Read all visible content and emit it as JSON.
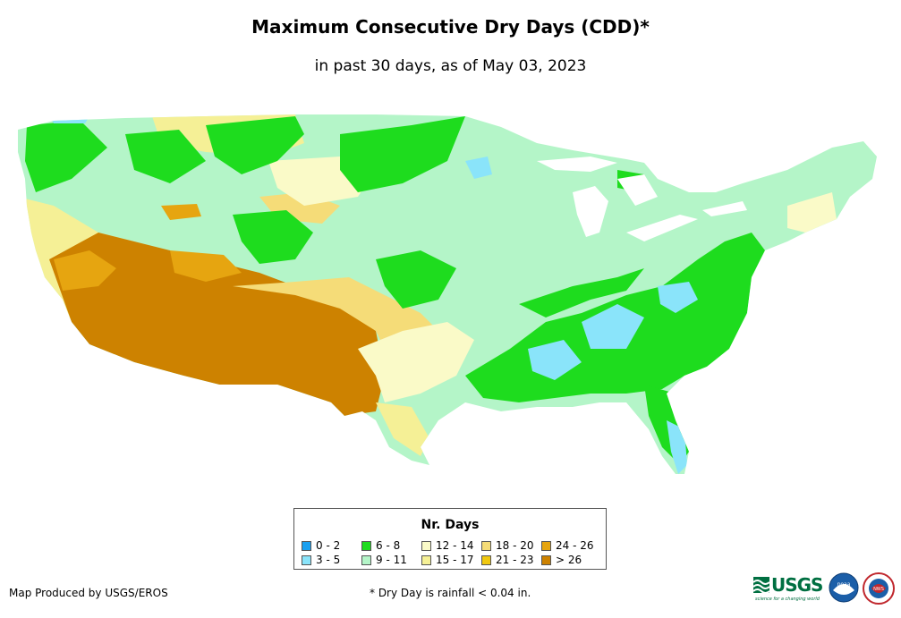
{
  "title": "Maximum Consecutive Dry Days (CDD)*",
  "subtitle": "in past 30 days, as of May 03, 2023",
  "legend": {
    "title": "Nr. Days",
    "items": [
      {
        "label": "0 - 2",
        "color": "#1aa0f0"
      },
      {
        "label": "3 - 5",
        "color": "#8ae4fa"
      },
      {
        "label": "6 - 8",
        "color": "#1edc1e"
      },
      {
        "label": "9 - 11",
        "color": "#b4f5c8"
      },
      {
        "label": "12 - 14",
        "color": "#fafac8"
      },
      {
        "label": "15 - 17",
        "color": "#f5f096"
      },
      {
        "label": "18 - 20",
        "color": "#f5dc78"
      },
      {
        "label": "21 - 23",
        "color": "#f0c80f"
      },
      {
        "label": "24 - 26",
        "color": "#e6a510"
      },
      {
        "label": "> 26",
        "color": "#cd8200"
      }
    ]
  },
  "credit": "Map Produced by USGS/EROS",
  "footnote": "* Dry Day is rainfall < 0.04 in.",
  "logos": {
    "usgs": "USGS",
    "usgs_tagline": "science for a changing world",
    "noaa": "noaa",
    "nws": "NWS"
  }
}
